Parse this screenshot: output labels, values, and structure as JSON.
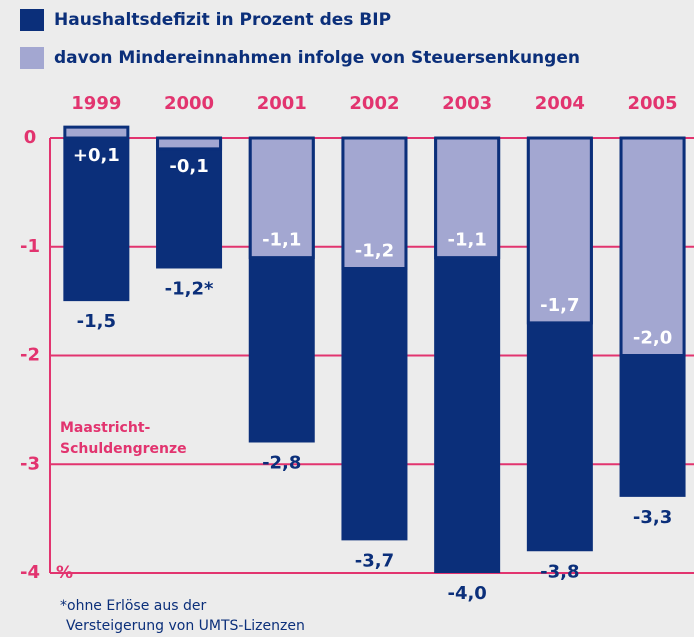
{
  "chart_data": {
    "type": "overlay-bar",
    "categories": [
      "1999",
      "2000",
      "2001",
      "2002",
      "2003",
      "2004",
      "2005"
    ],
    "series": [
      {
        "name": "Haushaltsdefizit in Prozent des BIP",
        "color": "#0b2f7a",
        "values": [
          -1.5,
          -1.2,
          -2.8,
          -3.7,
          -4.0,
          -3.8,
          -3.3
        ],
        "value_labels": [
          "-1,5",
          "-1,2*",
          "-2,8",
          "-3,7",
          "-4,0",
          "-3,8",
          "-3,3"
        ]
      },
      {
        "name": "davon Mindereinnahmen infolge von Steuersenkungen",
        "color": "#a3a7d1",
        "values": [
          0.1,
          -0.1,
          -1.1,
          -1.2,
          -1.1,
          -1.7,
          -2.0
        ],
        "value_labels": [
          "+0,1",
          "-0,1",
          "-1,1",
          "-1,2",
          "-1,1",
          "-1,7",
          "-2,0"
        ]
      }
    ],
    "y_label": "%",
    "ylim": [
      -4,
      0
    ],
    "yticks": [
      0,
      -1,
      -2,
      -3,
      -4
    ],
    "grid": true,
    "annotation": [
      "Maastricht-",
      "Schuldengrenze"
    ],
    "footnote": [
      "*ohne Erlöse aus der",
      "Versteigerung von UMTS-Lizenzen"
    ]
  }
}
